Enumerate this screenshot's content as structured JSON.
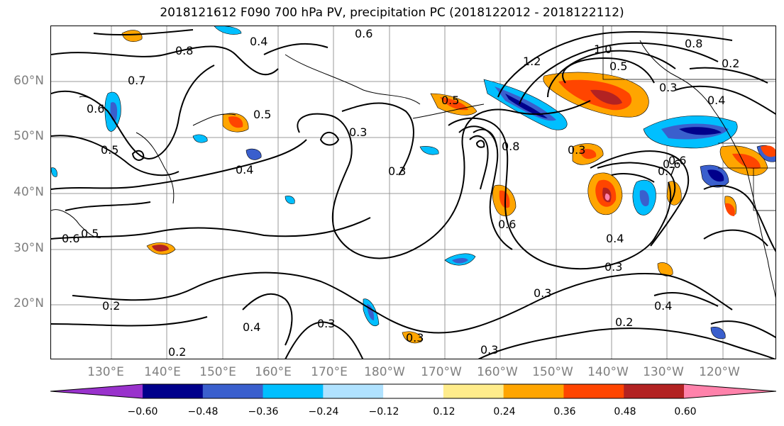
{
  "title": "2018121612 F090 700 hPa PV, precipitation PC (2018122012 - 2018122112)",
  "lat_labels": [
    "60°N",
    "50°N",
    "40°N",
    "30°N",
    "20°N"
  ],
  "lon_labels": [
    "130°E",
    "140°E",
    "150°E",
    "160°E",
    "170°E",
    "180°W",
    "170°W",
    "160°W",
    "150°W",
    "140°W",
    "130°W",
    "120°W"
  ],
  "contour_labels": [
    "0.6",
    "0.4",
    "0.8",
    "0.7",
    "0.6",
    "0.5",
    "0.5",
    "0.4",
    "0.3",
    "0.3",
    "0.8",
    "1.2",
    "1.0",
    "0.5",
    "0.8",
    "0.3",
    "0.4",
    "0.6",
    "0.3",
    "0.5",
    "0.7",
    "0.6",
    "0.4",
    "0.3",
    "0.2",
    "0.4",
    "0.3",
    "0.2",
    "0.3",
    "0.3",
    "0.2",
    "0.4",
    "0.6",
    "0.5",
    "0.6",
    "0.3",
    "0.2"
  ],
  "colorbar": {
    "ticks": [
      "−0.60",
      "−0.48",
      "−0.36",
      "−0.24",
      "−0.12",
      "0.12",
      "0.24",
      "0.36",
      "0.48",
      "0.60"
    ],
    "colors": [
      "#9932cc",
      "#00008b",
      "#3a5fcd",
      "#00bfff",
      "#b0e2ff",
      "#ffffff",
      "#ffec8b",
      "#ffa500",
      "#ff4500",
      "#b22222",
      "#ff82ab"
    ]
  }
}
